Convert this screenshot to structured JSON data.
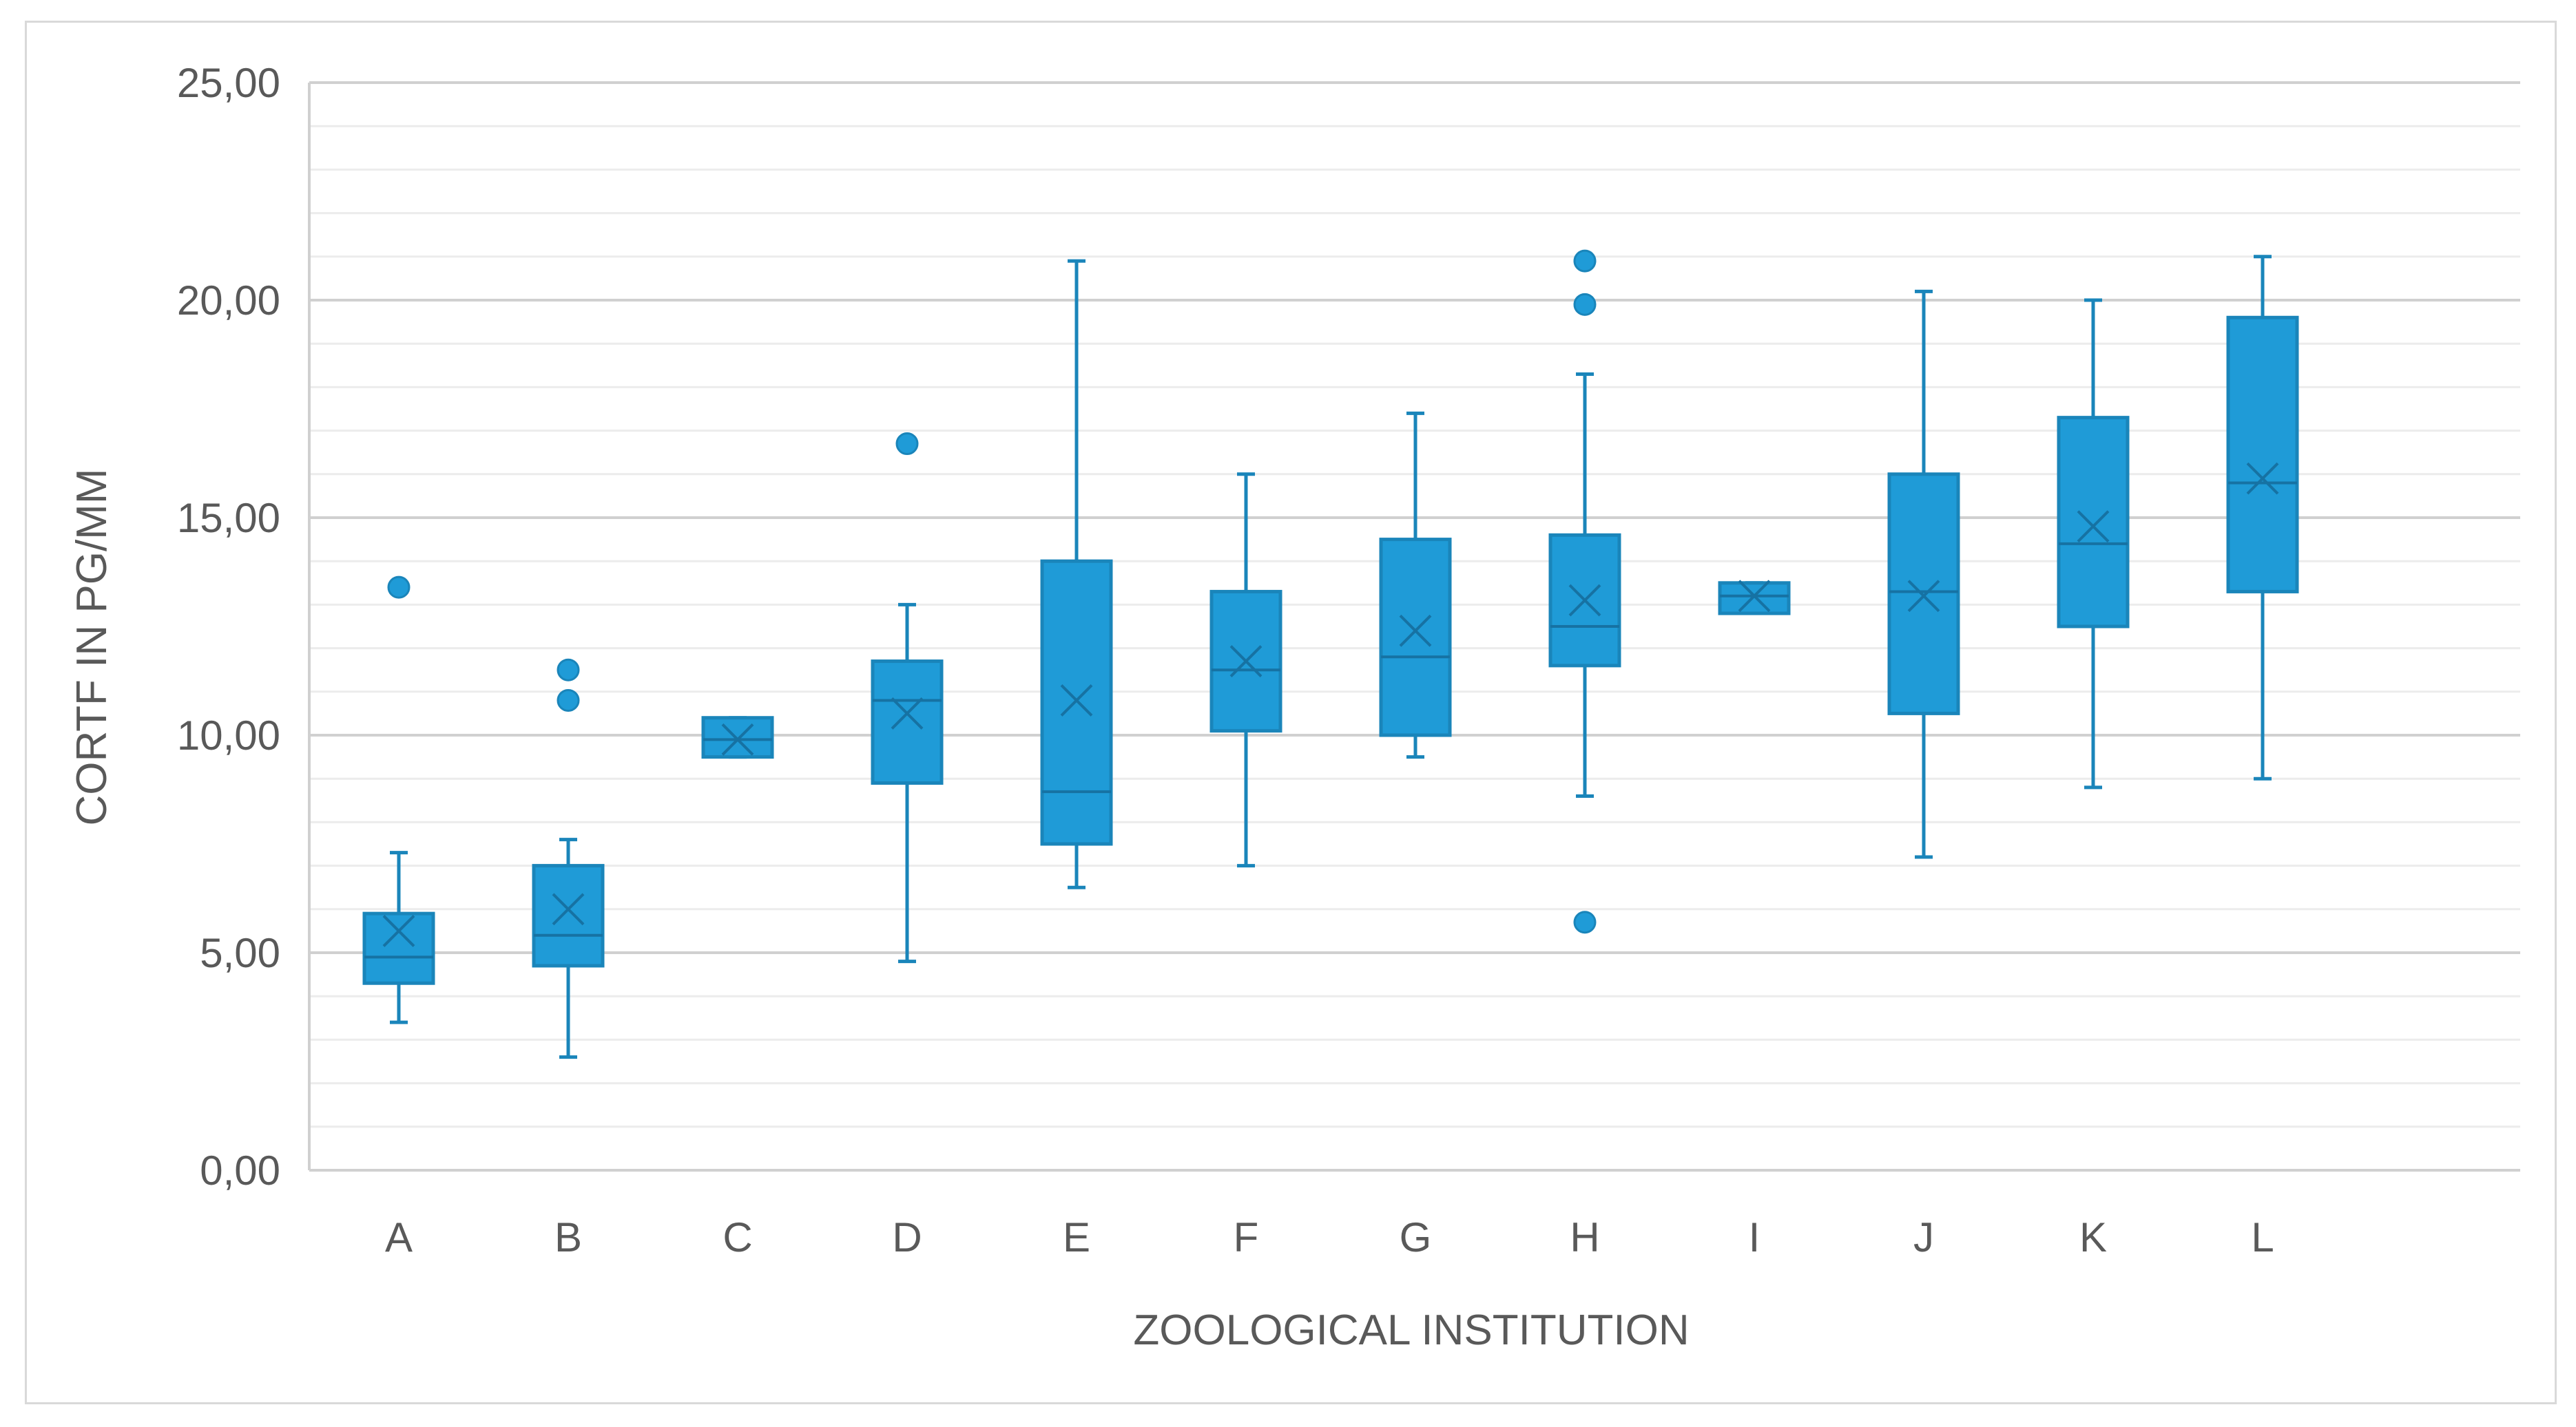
{
  "chart_data": {
    "type": "box",
    "title": "",
    "xlabel": "ZOOLOGICAL INSTITUTION",
    "ylabel": "CORTF IN PG/MM",
    "ylim": [
      0,
      25
    ],
    "y_major_ticks": [
      "0,00",
      "5,00",
      "10,00",
      "15,00",
      "20,00",
      "25,00"
    ],
    "y_major_values": [
      0,
      5,
      10,
      15,
      20,
      25
    ],
    "y_minor_step": 1,
    "grid": true,
    "legend": "none",
    "box_color": "#1f9bd7",
    "box_edge_color": "#1a85ba",
    "gridline_color": "#d9d9d9",
    "categories": [
      "A",
      "B",
      "C",
      "D",
      "E",
      "F",
      "G",
      "H",
      "I",
      "J",
      "K",
      "L"
    ],
    "boxes": [
      {
        "label": "A",
        "min": 3.4,
        "q1": 4.3,
        "median": 4.9,
        "q3": 5.9,
        "max": 7.3,
        "mean": 5.5,
        "outliers": [
          13.4
        ]
      },
      {
        "label": "B",
        "min": 2.6,
        "q1": 4.7,
        "median": 5.4,
        "q3": 7.0,
        "max": 7.6,
        "mean": 6.0,
        "outliers": [
          10.8,
          11.5
        ]
      },
      {
        "label": "C",
        "min": 9.5,
        "q1": 9.5,
        "median": 9.9,
        "q3": 10.4,
        "max": 10.4,
        "mean": 9.9,
        "outliers": []
      },
      {
        "label": "D",
        "min": 4.8,
        "q1": 8.9,
        "median": 10.8,
        "q3": 11.7,
        "max": 13.0,
        "mean": 10.5,
        "outliers": [
          16.7
        ]
      },
      {
        "label": "E",
        "min": 6.5,
        "q1": 7.5,
        "median": 8.7,
        "q3": 14.0,
        "max": 20.9,
        "mean": 10.8,
        "outliers": []
      },
      {
        "label": "F",
        "min": 7.0,
        "q1": 10.1,
        "median": 11.5,
        "q3": 13.3,
        "max": 16.0,
        "mean": 11.7,
        "outliers": []
      },
      {
        "label": "G",
        "min": 9.5,
        "q1": 10.0,
        "median": 11.8,
        "q3": 14.5,
        "max": 17.4,
        "mean": 12.4,
        "outliers": []
      },
      {
        "label": "H",
        "min": 8.6,
        "q1": 11.6,
        "median": 12.5,
        "q3": 14.6,
        "max": 18.3,
        "mean": 13.1,
        "outliers": [
          5.7,
          19.9,
          20.9
        ]
      },
      {
        "label": "I",
        "min": 12.8,
        "q1": 12.8,
        "median": 13.2,
        "q3": 13.5,
        "max": 13.5,
        "mean": 13.2,
        "outliers": []
      },
      {
        "label": "J",
        "min": 7.2,
        "q1": 10.5,
        "median": 13.3,
        "q3": 16.0,
        "max": 20.2,
        "mean": 13.2,
        "outliers": []
      },
      {
        "label": "K",
        "min": 8.8,
        "q1": 12.5,
        "median": 14.4,
        "q3": 17.3,
        "max": 20.0,
        "mean": 14.8,
        "outliers": []
      },
      {
        "label": "L",
        "min": 9.0,
        "q1": 13.3,
        "median": 15.8,
        "q3": 19.6,
        "max": 21.0,
        "mean": 15.9,
        "outliers": []
      }
    ]
  }
}
